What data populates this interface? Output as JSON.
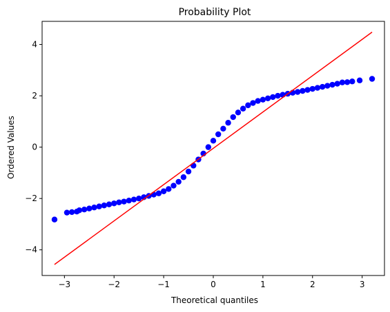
{
  "chart_data": {
    "type": "scatter",
    "title": "Probability Plot",
    "xlabel": "Theoretical quantiles",
    "ylabel": "Ordered Values",
    "xlim": [
      -3.45,
      3.45
    ],
    "ylim": [
      -5.0,
      4.9
    ],
    "xticks": [
      -3,
      -2,
      -1,
      0,
      1,
      2,
      3
    ],
    "yticks": [
      -4,
      -2,
      0,
      2,
      4
    ],
    "xtick_labels": [
      "−3",
      "−2",
      "−1",
      "0",
      "1",
      "2",
      "3"
    ],
    "ytick_labels": [
      "−4",
      "−2",
      "0",
      "2",
      "4"
    ],
    "grid": false,
    "series": [
      {
        "kind": "points",
        "color": "#0000ff",
        "x": [
          -3.2,
          -2.95,
          -2.85,
          -2.75,
          -2.7,
          -2.6,
          -2.5,
          -2.4,
          -2.3,
          -2.2,
          -2.1,
          -2.0,
          -1.9,
          -1.8,
          -1.7,
          -1.6,
          -1.5,
          -1.4,
          -1.3,
          -1.2,
          -1.1,
          -1.0,
          -0.9,
          -0.8,
          -0.7,
          -0.6,
          -0.5,
          -0.4,
          -0.3,
          -0.2,
          -0.1,
          0.0,
          0.1,
          0.2,
          0.3,
          0.4,
          0.5,
          0.6,
          0.7,
          0.8,
          0.9,
          1.0,
          1.1,
          1.2,
          1.3,
          1.4,
          1.5,
          1.6,
          1.7,
          1.8,
          1.9,
          2.0,
          2.1,
          2.2,
          2.3,
          2.4,
          2.5,
          2.6,
          2.7,
          2.8,
          2.95,
          3.2
        ],
        "y": [
          -2.82,
          -2.55,
          -2.53,
          -2.51,
          -2.46,
          -2.43,
          -2.39,
          -2.35,
          -2.31,
          -2.27,
          -2.23,
          -2.19,
          -2.15,
          -2.12,
          -2.08,
          -2.04,
          -2.0,
          -1.95,
          -1.9,
          -1.85,
          -1.8,
          -1.72,
          -1.63,
          -1.5,
          -1.35,
          -1.17,
          -0.95,
          -0.72,
          -0.48,
          -0.25,
          0.0,
          0.25,
          0.5,
          0.72,
          0.95,
          1.17,
          1.35,
          1.5,
          1.63,
          1.72,
          1.8,
          1.85,
          1.9,
          1.95,
          2.0,
          2.04,
          2.08,
          2.12,
          2.15,
          2.19,
          2.23,
          2.27,
          2.31,
          2.35,
          2.39,
          2.43,
          2.47,
          2.52,
          2.53,
          2.56,
          2.6,
          2.66
        ]
      },
      {
        "kind": "line",
        "color": "#ff0000",
        "x": [
          -3.2,
          3.2
        ],
        "y": [
          -4.57,
          4.48
        ]
      }
    ]
  }
}
